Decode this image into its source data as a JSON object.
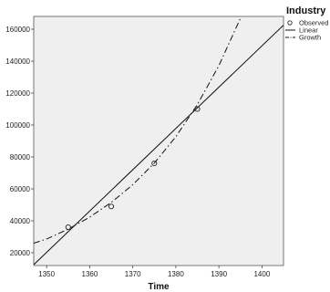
{
  "chart_data": {
    "type": "line",
    "xlabel": "Time",
    "ylabel": "",
    "xlim": [
      1347,
      1405
    ],
    "ylim": [
      12000,
      168000
    ],
    "x_ticks": [
      1350,
      1360,
      1370,
      1380,
      1390,
      1400
    ],
    "y_ticks": [
      20000,
      40000,
      60000,
      80000,
      100000,
      120000,
      140000,
      160000
    ],
    "grid": false,
    "background": "#efefef",
    "legend": {
      "title": "Industry",
      "position": "top-right",
      "entries": [
        "Observed",
        "Linear",
        "Growth"
      ]
    },
    "series": [
      {
        "name": "Observed",
        "kind": "scatter",
        "marker": "circle",
        "x": [
          1355,
          1365,
          1375,
          1385
        ],
        "y": [
          36000,
          49000,
          76000,
          110000
        ]
      },
      {
        "name": "Linear",
        "kind": "line",
        "style": "solid",
        "x": [
          1347,
          1405
        ],
        "y": [
          12500,
          162500
        ]
      },
      {
        "name": "Growth",
        "kind": "line",
        "style": "dash-dot",
        "x": [
          1347,
          1350,
          1355,
          1360,
          1365,
          1370,
          1375,
          1380,
          1385,
          1390,
          1395,
          1396
        ],
        "y": [
          26000,
          28600,
          34800,
          42300,
          51500,
          62600,
          76200,
          92700,
          112800,
          137200,
          166900,
          173500
        ]
      }
    ]
  }
}
